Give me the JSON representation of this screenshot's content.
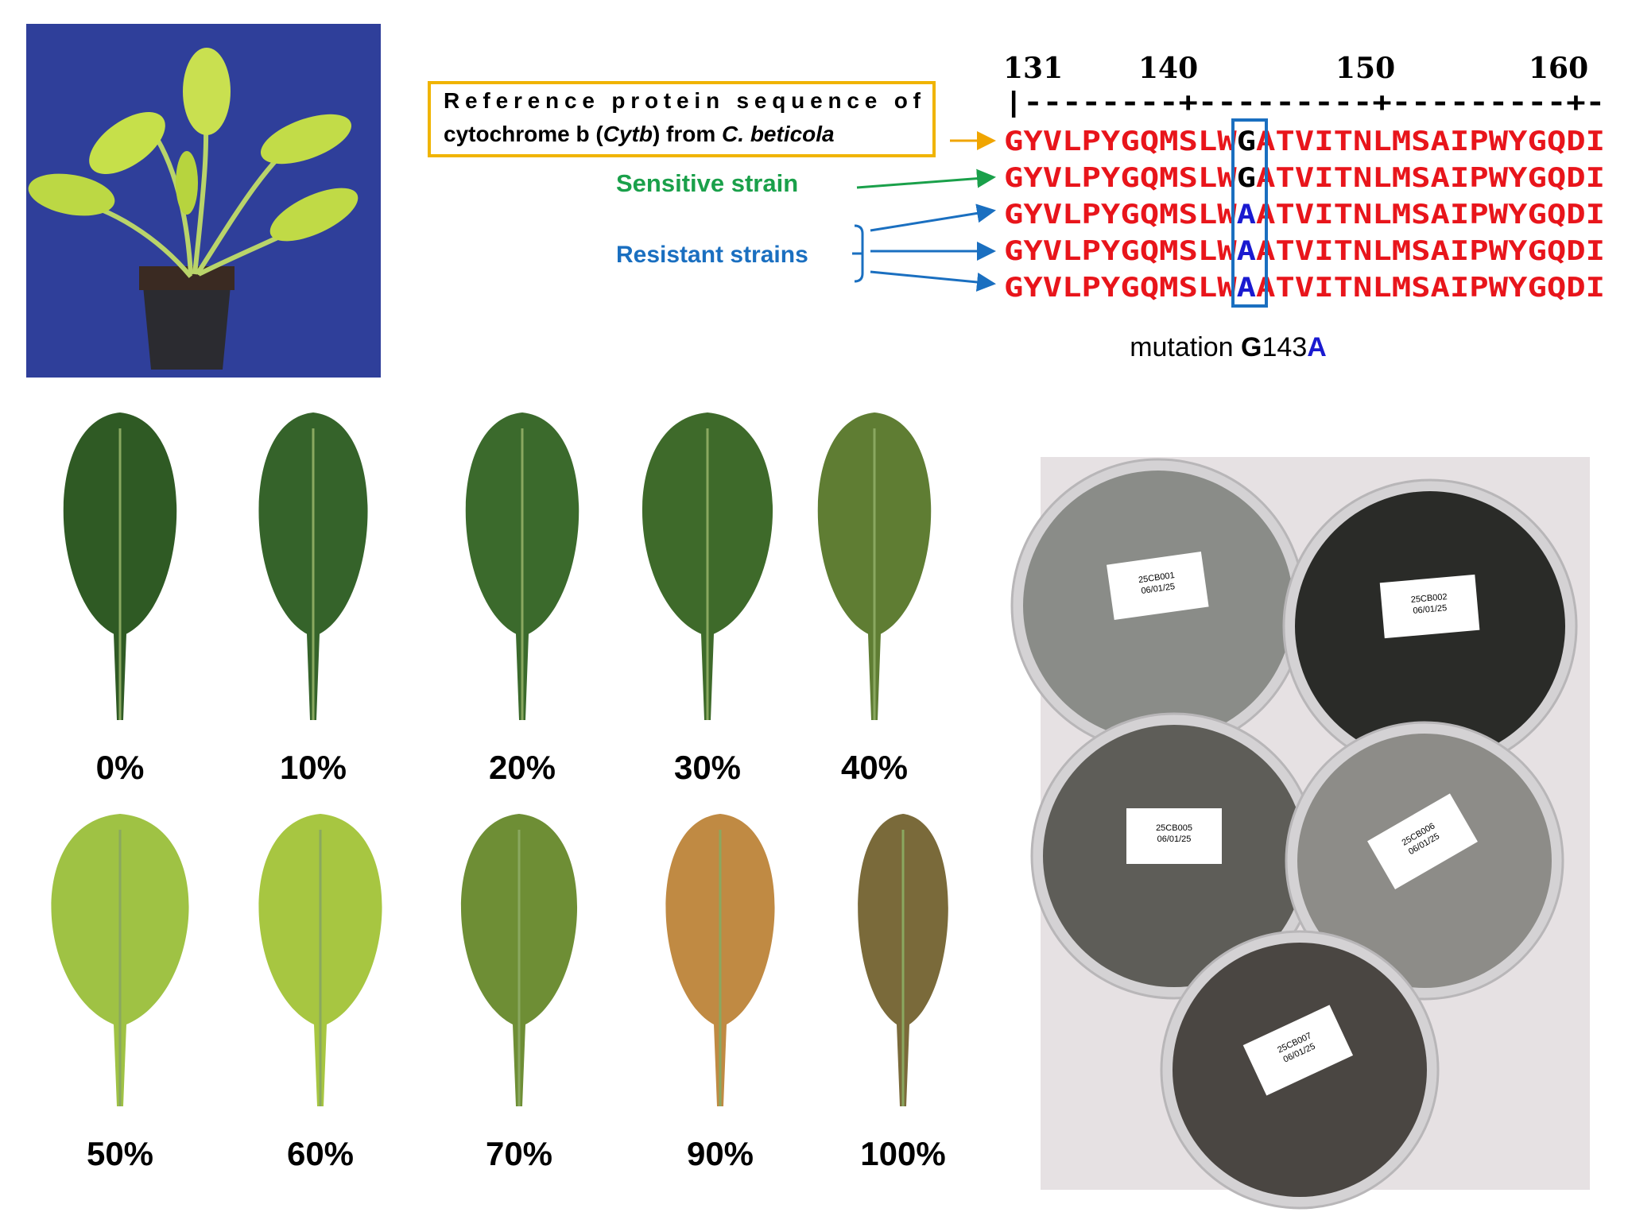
{
  "alignment": {
    "ruler_numbers": [
      "131",
      "140",
      "150",
      "160"
    ],
    "ruler": "|--------+---------+---------+-",
    "reference_label": [
      {
        "text": "Reference protein sequence of cytochrome b ("
      },
      {
        "text": "Cytb",
        "italic": true
      },
      {
        "text": ") from "
      },
      {
        "text": "C. beticola",
        "italic": true
      }
    ],
    "sensitive_label": "Sensitive strain",
    "resistant_label": "Resistant strains",
    "rows": [
      {
        "prefix": "GYVLPYGQMSLW",
        "residue": "G",
        "suffix": "ATVITNLMSAIPWYGQDI"
      },
      {
        "prefix": "GYVLPYGQMSLW",
        "residue": "G",
        "suffix": "ATVITNLMSAIPWYGQDI"
      },
      {
        "prefix": "GYVLPYGQMSLW",
        "residue": "A",
        "suffix": "ATVITNLMSAIPWYGQDI"
      },
      {
        "prefix": "GYVLPYGQMSLW",
        "residue": "A",
        "suffix": "ATVITNLMSAIPWYGQDI"
      },
      {
        "prefix": "GYVLPYGQMSLW",
        "residue": "A",
        "suffix": "ATVITNLMSAIPWYGQDI"
      }
    ],
    "mutation": {
      "prefix": "mutation ",
      "from": "G",
      "position": "143",
      "to": "A"
    }
  },
  "severity_labels": [
    [
      "0%",
      "10%",
      "20%",
      "30%",
      "40%"
    ],
    [
      "50%",
      "60%",
      "70%",
      "90%",
      "100%"
    ]
  ],
  "plates": [
    {
      "id": "25CB001",
      "date": "06/01/25"
    },
    {
      "id": "25CB002",
      "date": "06/01/25"
    },
    {
      "id": "25CB005",
      "date": "06/01/25"
    },
    {
      "id": "25CB006",
      "date": "06/01/25"
    },
    {
      "id": "25CB007",
      "date": "06/01/25"
    }
  ]
}
